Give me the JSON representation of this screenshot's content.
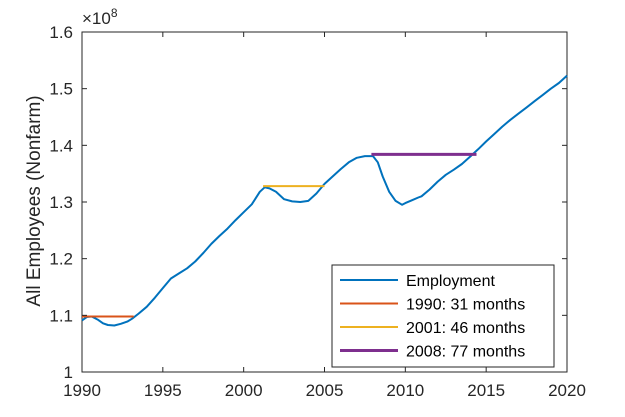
{
  "chart_data": {
    "type": "line",
    "ylabel": "All Employees (Nonfarm)",
    "xlabel": "",
    "y_exponent_label": "×10",
    "y_exponent_power": "8",
    "xlim": [
      1990,
      2020
    ],
    "ylim": [
      1.0,
      1.6
    ],
    "y_scale_factor": 100000000,
    "grid": false,
    "legend_placement": "bottom-right",
    "x_ticks": [
      {
        "value": 1990,
        "label": "1990"
      },
      {
        "value": 1995,
        "label": "1995"
      },
      {
        "value": 2000,
        "label": "2000"
      },
      {
        "value": 2005,
        "label": "2005"
      },
      {
        "value": 2010,
        "label": "2010"
      },
      {
        "value": 2015,
        "label": "2015"
      },
      {
        "value": 2020,
        "label": "2020"
      }
    ],
    "y_ticks": [
      {
        "value": 1.0,
        "label": "1"
      },
      {
        "value": 1.1,
        "label": "1.1"
      },
      {
        "value": 1.2,
        "label": "1.2"
      },
      {
        "value": 1.3,
        "label": "1.3"
      },
      {
        "value": 1.4,
        "label": "1.4"
      },
      {
        "value": 1.5,
        "label": "1.5"
      },
      {
        "value": 1.6,
        "label": "1.6"
      }
    ],
    "series": [
      {
        "name": "Employment",
        "color": "#0072BD",
        "x": [
          1990.0,
          1990.3,
          1990.6,
          1991.0,
          1991.3,
          1991.6,
          1992.0,
          1992.4,
          1992.8,
          1993.1,
          1993.5,
          1994.0,
          1994.5,
          1995.0,
          1995.5,
          1996.0,
          1996.5,
          1997.0,
          1997.5,
          1998.0,
          1998.5,
          1999.0,
          1999.5,
          2000.0,
          2000.5,
          2001.0,
          2001.3,
          2001.6,
          2002.0,
          2002.5,
          2003.0,
          2003.5,
          2004.0,
          2004.5,
          2005.0,
          2005.5,
          2006.0,
          2006.5,
          2007.0,
          2007.5,
          2008.0,
          2008.3,
          2008.6,
          2009.0,
          2009.4,
          2009.8,
          2010.0,
          2010.4,
          2010.8,
          2011.0,
          2011.5,
          2012.0,
          2012.5,
          2013.0,
          2013.5,
          2014.0,
          2014.5,
          2015.0,
          2015.5,
          2016.0,
          2016.5,
          2017.0,
          2017.5,
          2018.0,
          2018.5,
          2019.0,
          2019.5,
          2020.0
        ],
        "y": [
          1.091,
          1.097,
          1.098,
          1.092,
          1.086,
          1.083,
          1.082,
          1.085,
          1.089,
          1.094,
          1.103,
          1.115,
          1.131,
          1.148,
          1.165,
          1.174,
          1.183,
          1.195,
          1.21,
          1.226,
          1.24,
          1.253,
          1.268,
          1.282,
          1.296,
          1.318,
          1.326,
          1.324,
          1.318,
          1.305,
          1.301,
          1.3,
          1.302,
          1.315,
          1.332,
          1.345,
          1.358,
          1.37,
          1.378,
          1.381,
          1.381,
          1.37,
          1.345,
          1.318,
          1.302,
          1.295,
          1.298,
          1.303,
          1.308,
          1.31,
          1.322,
          1.336,
          1.348,
          1.357,
          1.367,
          1.38,
          1.393,
          1.407,
          1.42,
          1.433,
          1.445,
          1.456,
          1.467,
          1.478,
          1.489,
          1.5,
          1.51,
          1.523
        ]
      },
      {
        "name": "1990: 31 months",
        "color": "#D95319",
        "x": [
          1990.0,
          1993.2
        ],
        "y": [
          1.098,
          1.098
        ]
      },
      {
        "name": "2001: 46 months",
        "color": "#EDB120",
        "x": [
          2001.2,
          2005.0
        ],
        "y": [
          1.328,
          1.328
        ]
      },
      {
        "name": "2008: 77 months",
        "color": "#7E2F8E",
        "x": [
          2007.9,
          2014.4
        ],
        "y": [
          1.384,
          1.384
        ]
      }
    ]
  }
}
